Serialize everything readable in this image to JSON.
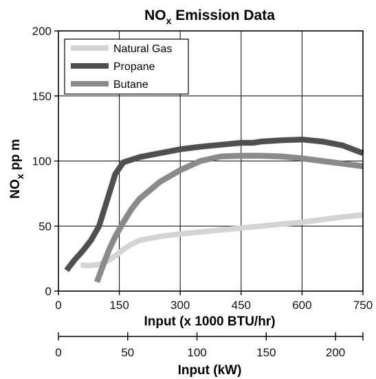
{
  "chart_data": {
    "type": "line",
    "title": {
      "main": "NO",
      "sub": "x",
      "rest": " Emission Data"
    },
    "ylabel": {
      "main": "NO",
      "sub": "x",
      "rest": " pp m"
    },
    "xlabel": "Input (x 1000 BTU/hr)",
    "x2label": "Input (kW)",
    "xlim": [
      0,
      750
    ],
    "ylim": [
      0,
      200
    ],
    "x_ticks": [
      0,
      150,
      300,
      450,
      600,
      750
    ],
    "y_ticks": [
      0,
      50,
      100,
      150,
      200
    ],
    "x2_ticks": [
      0,
      50,
      100,
      150,
      200
    ],
    "x2lim": [
      0,
      219.8
    ],
    "grid": true,
    "legend_position": "top-left",
    "series": [
      {
        "name": "Natural Gas",
        "color": "#d4d4d4",
        "x": [
          55,
          75,
          100,
          120,
          140,
          160,
          180,
          200,
          250,
          300,
          350,
          400,
          450,
          500,
          550,
          600,
          650,
          700,
          750
        ],
        "y": [
          20,
          19.5,
          20.5,
          23,
          27,
          32,
          36,
          39,
          42,
          44,
          45.5,
          47,
          48.5,
          50,
          51.5,
          53,
          55,
          57,
          58.5
        ]
      },
      {
        "name": "Propane",
        "color": "#4f4f4f",
        "x": [
          20,
          40,
          60,
          80,
          100,
          120,
          140,
          160,
          200,
          250,
          300,
          350,
          400,
          450,
          480,
          500,
          550,
          600,
          650,
          700,
          750
        ],
        "y": [
          16,
          24,
          31,
          39,
          50,
          70,
          90,
          99,
          103,
          106,
          109,
          111,
          112.5,
          114,
          114,
          115,
          116,
          116.5,
          115,
          112,
          106
        ]
      },
      {
        "name": "Butane",
        "color": "#8a8a8a",
        "x": [
          95,
          110,
          125,
          140,
          160,
          180,
          200,
          250,
          300,
          350,
          400,
          450,
          500,
          550,
          600,
          650,
          700,
          750
        ],
        "y": [
          7,
          20,
          32,
          42,
          53,
          63,
          71,
          84,
          93,
          100,
          103.5,
          104,
          104,
          103.5,
          102,
          100,
          98,
          96
        ]
      }
    ]
  }
}
